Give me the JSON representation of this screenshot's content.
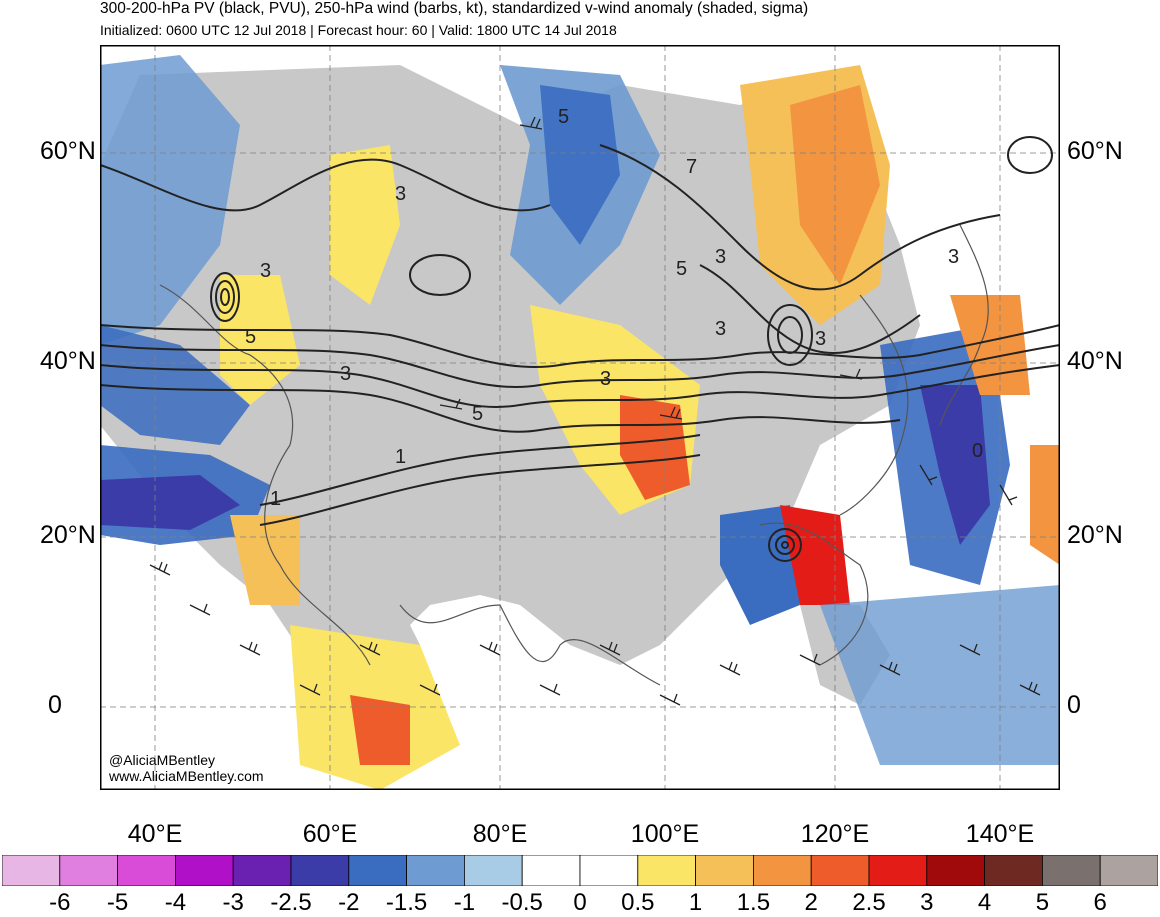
{
  "header": {
    "title": "300-200-hPa PV (black, PVU), 250-hPa wind (barbs, kt), standardized v-wind anomaly (shaded, sigma)",
    "subtitle": "Initialized: 0600 UTC 12 Jul 2018 | Forecast hour: 60 | Valid: 1800 UTC 14 Jul 2018"
  },
  "map": {
    "lat_labels_left": [
      "60°N",
      "40°N",
      "20°N",
      "0"
    ],
    "lat_labels_right": [
      "60°N",
      "40°N",
      "20°N",
      "0"
    ],
    "lon_labels": [
      "40°E",
      "60°E",
      "80°E",
      "100°E",
      "120°E",
      "140°E"
    ],
    "contour_labels": [
      "5",
      "7",
      "3",
      "3",
      "5",
      "5",
      "3",
      "3",
      "3",
      "3",
      "5",
      "3",
      "1",
      "1",
      "3",
      "0"
    ],
    "credits": {
      "handle": "@AliciaMBentley",
      "website": "www.AliciaMBentley.com"
    }
  },
  "colorbar": {
    "tick_labels": [
      "-6",
      "-5",
      "-4",
      "-3",
      "-2.5",
      "-2",
      "-1.5",
      "-1",
      "-0.5",
      "0",
      "0.5",
      "1",
      "1.5",
      "2",
      "2.5",
      "3",
      "4",
      "5",
      "6"
    ],
    "colors": [
      "#e8b6e4",
      "#e07fe0",
      "#d84cd8",
      "#b010c8",
      "#6a20b0",
      "#3c3ca8",
      "#3a6cc0",
      "#6e9bd2",
      "#a8cbe6",
      "#ffffff",
      "#ffffff",
      "#fbe566",
      "#f5c058",
      "#f29440",
      "#ef5c2c",
      "#e41c18",
      "#a00a0a",
      "#6e2a22",
      "#7a706e",
      "#aca2a0"
    ]
  }
}
